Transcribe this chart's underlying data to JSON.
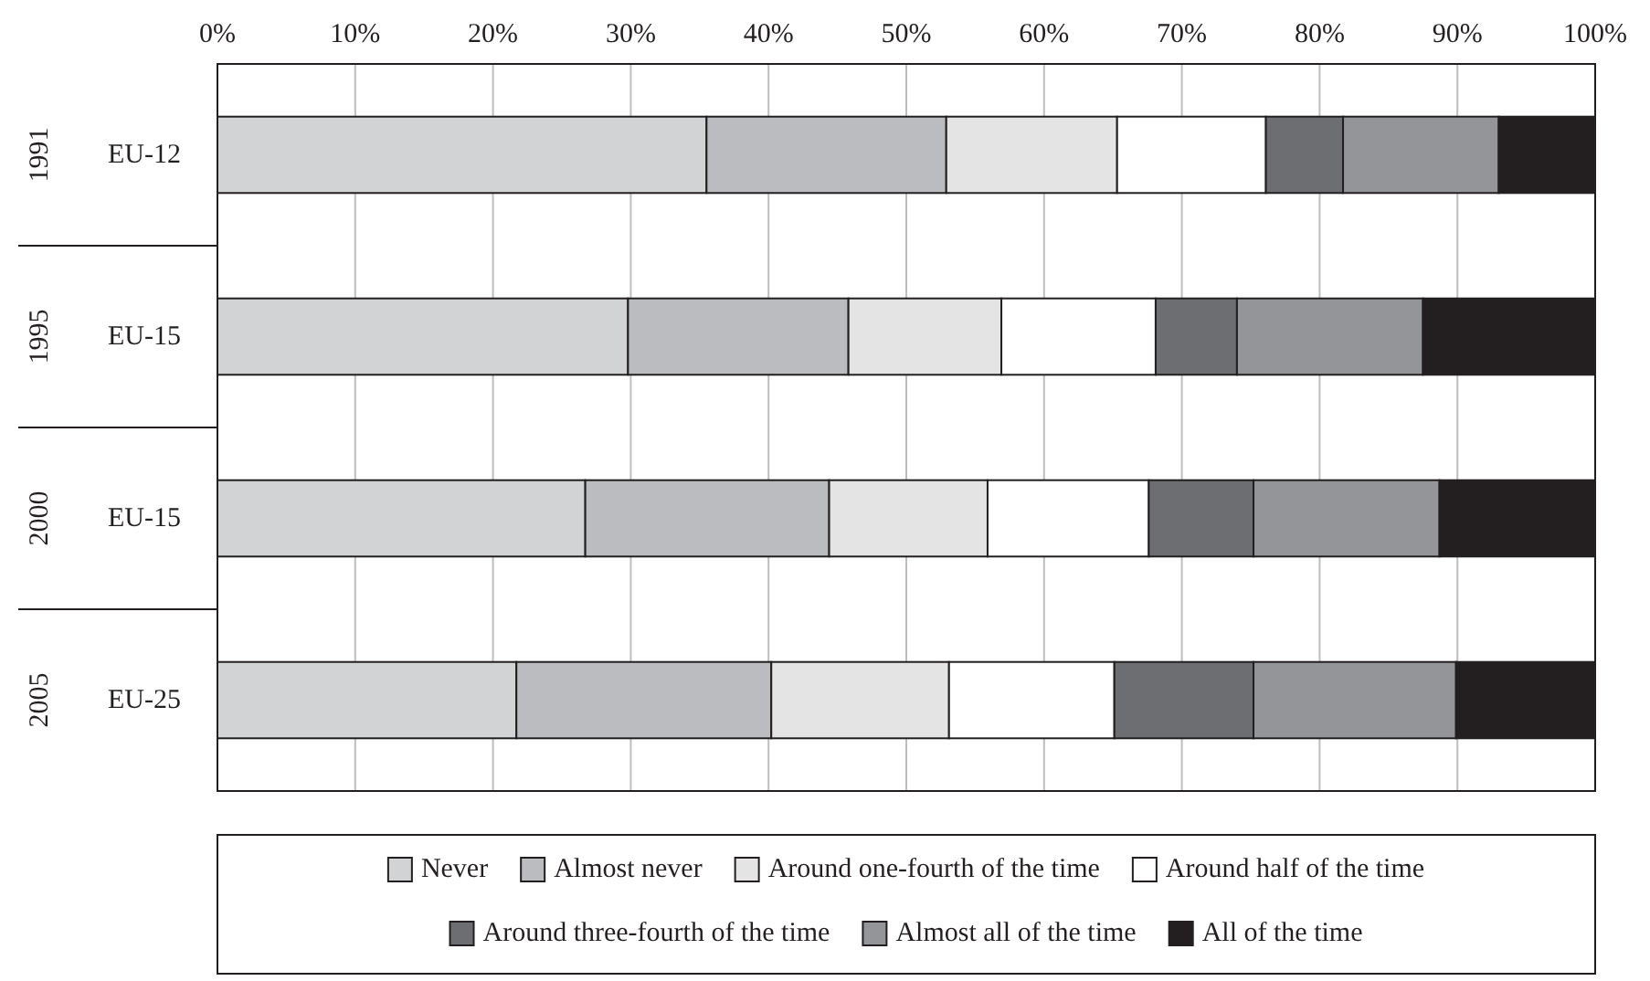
{
  "chart_data": {
    "type": "bar",
    "orientation": "horizontal",
    "stacked": true,
    "categories": [
      "EU-12",
      "EU-15",
      "EU-15",
      "EU-25"
    ],
    "annotations": [
      "1991",
      "1995",
      "2000",
      "2005"
    ],
    "series": [
      {
        "name": "Never",
        "color": "#d1d3d4",
        "values": [
          35.5,
          29.8,
          26.7,
          21.7
        ]
      },
      {
        "name": "Almost never",
        "color": "#bbbcbf",
        "values": [
          17.4,
          16.0,
          17.7,
          18.5
        ]
      },
      {
        "name": "Around one-fourth of the time",
        "color": "#e4e4e4",
        "values": [
          12.4,
          11.1,
          11.5,
          12.9
        ]
      },
      {
        "name": "Around half of the time",
        "color": "#ffffff",
        "values": [
          10.8,
          11.2,
          11.7,
          12.0
        ]
      },
      {
        "name": "Around three-fourth of the time",
        "color": "#6d6e71",
        "values": [
          5.6,
          5.9,
          7.6,
          10.1
        ]
      },
      {
        "name": "Almost all of the time",
        "color": "#939598",
        "values": [
          11.3,
          13.5,
          13.5,
          14.7
        ]
      },
      {
        "name": "All of the time",
        "color": "#231f20",
        "values": [
          7.0,
          12.5,
          11.3,
          10.1
        ]
      }
    ],
    "xlim": [
      0,
      100
    ],
    "xticks": [
      {
        "value": 0,
        "label": "0%"
      },
      {
        "value": 10,
        "label": "10%"
      },
      {
        "value": 20,
        "label": "20%"
      },
      {
        "value": 30,
        "label": "30%"
      },
      {
        "value": 40,
        "label": "40%"
      },
      {
        "value": 50,
        "label": "50%"
      },
      {
        "value": 60,
        "label": "60%"
      },
      {
        "value": 70,
        "label": "70%"
      },
      {
        "value": 80,
        "label": "80%"
      },
      {
        "value": 90,
        "label": "90%"
      },
      {
        "value": 100,
        "label": "100%"
      }
    ],
    "grid": "x",
    "legend": "bottom"
  }
}
